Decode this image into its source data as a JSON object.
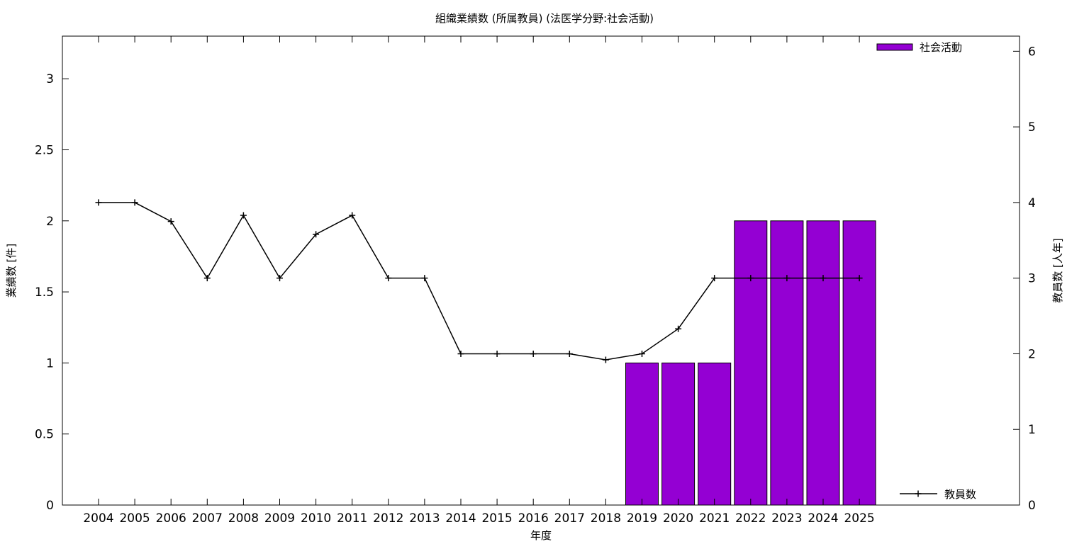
{
  "chart_data": {
    "type": "bar",
    "title": "組織業績数 (所属教員) (法医学分野:社会活動)",
    "xlabel": "年度",
    "ylabel": "業績数 [件]",
    "y2label": "教員数 [人年]",
    "categories": [
      "2004",
      "2005",
      "2006",
      "2007",
      "2008",
      "2009",
      "2010",
      "2011",
      "2012",
      "2013",
      "2014",
      "2015",
      "2016",
      "2017",
      "2018",
      "2019",
      "2020",
      "2021",
      "2022",
      "2023",
      "2024",
      "2025"
    ],
    "ylim": [
      0,
      3.3
    ],
    "y2lim": [
      0,
      6.2
    ],
    "yticks": [
      0,
      0.5,
      1,
      1.5,
      2,
      2.5,
      3
    ],
    "ytick_labels": [
      "0",
      "0.5",
      "1",
      "1.5",
      "2",
      "2.5",
      "3"
    ],
    "y2ticks": [
      0,
      1,
      2,
      3,
      4,
      5,
      6
    ],
    "y2tick_labels": [
      "0",
      "1",
      "2",
      "3",
      "4",
      "5",
      "6"
    ],
    "series": [
      {
        "name": "社会活動",
        "type": "bar",
        "axis": "left",
        "color": "#9400D3",
        "values": [
          null,
          null,
          null,
          null,
          null,
          null,
          null,
          null,
          null,
          null,
          null,
          null,
          null,
          null,
          null,
          1,
          1,
          1,
          2,
          2,
          2,
          2
        ]
      },
      {
        "name": "教員数",
        "type": "line",
        "axis": "right",
        "color": "#000000",
        "values": [
          4,
          4,
          3.75,
          3,
          3.83,
          3,
          3.58,
          3.83,
          3,
          3,
          2,
          2,
          2,
          2,
          1.92,
          2,
          2.33,
          3,
          3,
          3,
          3,
          3
        ]
      }
    ],
    "legend": {
      "bar_position": "top-right",
      "line_position": "bottom-right"
    },
    "grid": false
  }
}
